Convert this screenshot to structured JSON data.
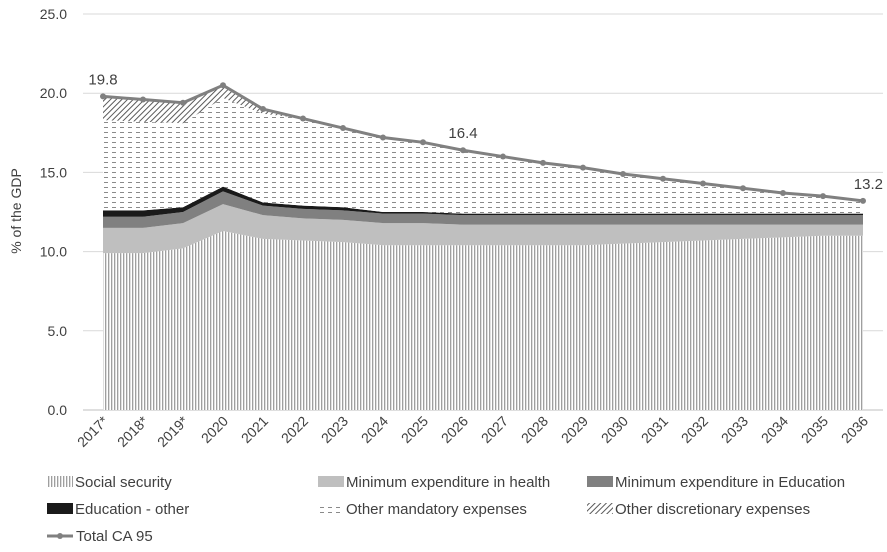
{
  "chart_data": {
    "type": "area",
    "ylabel": "% of the GDP",
    "xlabel": "",
    "ylim": [
      0,
      25
    ],
    "y_ticks": [
      "0.0",
      "5.0",
      "10.0",
      "15.0",
      "20.0",
      "25.0"
    ],
    "grid": "horizontal",
    "legend_position": "bottom",
    "categories": [
      "2017*",
      "2018*",
      "2019*",
      "2020",
      "2021",
      "2022",
      "2023",
      "2024",
      "2025",
      "2026",
      "2027",
      "2028",
      "2029",
      "2030",
      "2031",
      "2032",
      "2033",
      "2034",
      "2035",
      "2036"
    ],
    "stacked_series": [
      {
        "name": "Social security",
        "pattern": "vertical-lines",
        "values": [
          9.9,
          9.9,
          10.2,
          11.3,
          10.8,
          10.7,
          10.6,
          10.4,
          10.4,
          10.4,
          10.4,
          10.4,
          10.4,
          10.5,
          10.6,
          10.7,
          10.8,
          10.9,
          11.0,
          11.0
        ]
      },
      {
        "name": "Minimum expenditure in health",
        "color": "#bfbfbf",
        "values": [
          1.6,
          1.6,
          1.6,
          1.7,
          1.5,
          1.4,
          1.4,
          1.4,
          1.4,
          1.3,
          1.3,
          1.3,
          1.3,
          1.2,
          1.1,
          1.0,
          0.9,
          0.8,
          0.7,
          0.7
        ]
      },
      {
        "name": "Minimum expenditure in Education",
        "color": "#808080",
        "values": [
          0.7,
          0.7,
          0.7,
          0.8,
          0.6,
          0.6,
          0.6,
          0.6,
          0.6,
          0.6,
          0.6,
          0.6,
          0.6,
          0.6,
          0.6,
          0.6,
          0.6,
          0.6,
          0.6,
          0.6
        ]
      },
      {
        "name": "Education - other",
        "color": "#1a1a1a",
        "values": [
          0.4,
          0.4,
          0.3,
          0.3,
          0.2,
          0.2,
          0.2,
          0.1,
          0.1,
          0.1,
          0.1,
          0.1,
          0.1,
          0.1,
          0.1,
          0.1,
          0.1,
          0.1,
          0.1,
          0.1
        ]
      },
      {
        "name": "Other mandatory expenses",
        "pattern": "dashes",
        "values": [
          5.7,
          5.6,
          5.3,
          5.6,
          5.6,
          5.5,
          5.0,
          4.7,
          4.4,
          4.0,
          3.6,
          3.2,
          2.9,
          2.5,
          2.2,
          1.9,
          1.6,
          1.3,
          1.1,
          0.8
        ]
      },
      {
        "name": "Other discretionary expenses",
        "pattern": "diagonal-lines",
        "values": [
          1.5,
          1.4,
          1.3,
          0.8,
          0.3,
          0.0,
          0.0,
          0.0,
          0.0,
          0.0,
          0.0,
          0.0,
          0.0,
          0.0,
          0.0,
          0.0,
          0.0,
          0.0,
          0.0,
          0.0
        ]
      }
    ],
    "line_series": {
      "name": "Total CA 95",
      "color": "#808080",
      "values": [
        19.8,
        19.6,
        19.4,
        20.5,
        19.0,
        18.4,
        17.8,
        17.2,
        16.9,
        16.4,
        16.0,
        15.6,
        15.3,
        14.9,
        14.6,
        14.3,
        14.0,
        13.7,
        13.5,
        13.2
      ]
    },
    "data_labels": [
      {
        "index": 0,
        "text": "19.8"
      },
      {
        "index": 9,
        "text": "16.4"
      },
      {
        "index": 19,
        "text": "13.2"
      }
    ]
  }
}
